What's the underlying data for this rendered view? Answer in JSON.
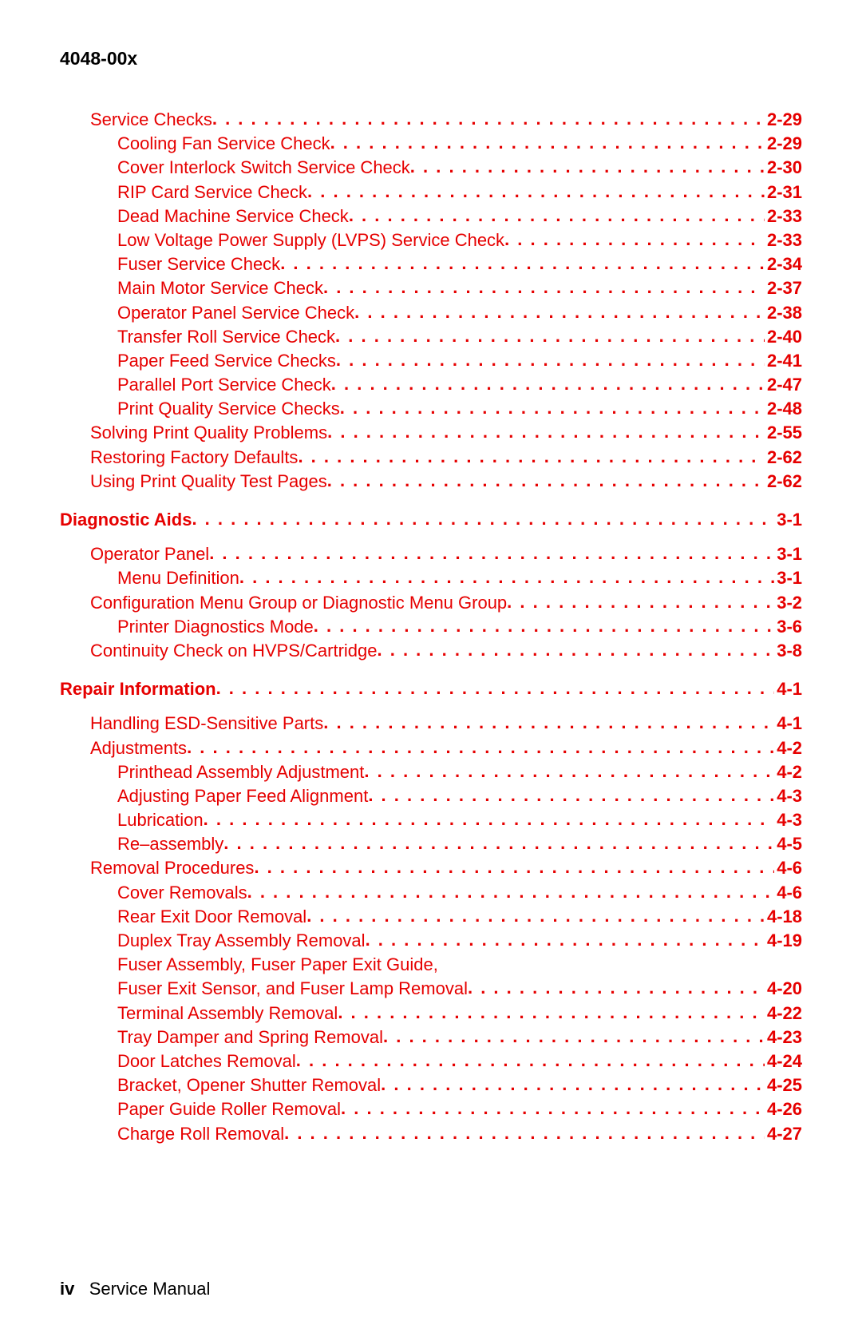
{
  "colors": {
    "link": "#e60000",
    "text": "#000000",
    "background": "#ffffff"
  },
  "fonts": {
    "family": "Arial, Helvetica, sans-serif",
    "body_size_pt": 16,
    "header_weight": "bold"
  },
  "header": {
    "model": "4048-00x"
  },
  "footer": {
    "page_roman": "iv",
    "doc_title": "Service Manual"
  },
  "toc": [
    {
      "label": "Service Checks",
      "page": "2-29",
      "indent": 1,
      "bold": false,
      "top_gap": false
    },
    {
      "label": "Cooling Fan Service Check",
      "page": "2-29",
      "indent": 2,
      "bold": false
    },
    {
      "label": "Cover Interlock Switch Service Check",
      "page": "2-30",
      "indent": 2,
      "bold": false
    },
    {
      "label": "RIP Card Service Check",
      "page": "2-31",
      "indent": 2,
      "bold": false
    },
    {
      "label": "Dead Machine Service Check",
      "page": "2-33",
      "indent": 2,
      "bold": false
    },
    {
      "label": "Low Voltage Power Supply (LVPS) Service Check",
      "page": "2-33",
      "indent": 2,
      "bold": false
    },
    {
      "label": "Fuser Service Check",
      "page": "2-34",
      "indent": 2,
      "bold": false
    },
    {
      "label": "Main Motor Service Check",
      "page": "2-37",
      "indent": 2,
      "bold": false
    },
    {
      "label": "Operator Panel Service Check",
      "page": "2-38",
      "indent": 2,
      "bold": false
    },
    {
      "label": "Transfer Roll Service Check",
      "page": "2-40",
      "indent": 2,
      "bold": false
    },
    {
      "label": "Paper Feed Service Checks",
      "page": "2-41",
      "indent": 2,
      "bold": false
    },
    {
      "label": "Parallel Port Service Check",
      "page": "2-47",
      "indent": 2,
      "bold": false
    },
    {
      "label": "Print Quality Service Checks",
      "page": "2-48",
      "indent": 2,
      "bold": false
    },
    {
      "label": "Solving Print Quality Problems",
      "page": "2-55",
      "indent": 1,
      "bold": false
    },
    {
      "label": "Restoring Factory Defaults",
      "page": "2-62",
      "indent": 1,
      "bold": false
    },
    {
      "label": "Using Print Quality Test Pages",
      "page": "2-62",
      "indent": 1,
      "bold": false
    },
    {
      "label": "Diagnostic Aids",
      "page": "3-1",
      "indent": 0,
      "bold": true,
      "section": true
    },
    {
      "label": "Operator Panel",
      "page": "3-1",
      "indent": 1,
      "bold": false,
      "block_start": true
    },
    {
      "label": "Menu Definition",
      "page": "3-1",
      "indent": 2,
      "bold": false
    },
    {
      "label": "Configuration Menu Group or Diagnostic Menu Group",
      "page": "3-2",
      "indent": 1,
      "bold": false
    },
    {
      "label": "Printer Diagnostics Mode",
      "page": "3-6",
      "indent": 2,
      "bold": false
    },
    {
      "label": "Continuity Check on HVPS/Cartridge",
      "page": "3-8",
      "indent": 1,
      "bold": false
    },
    {
      "label": "Repair Information",
      "page": "4-1",
      "indent": 0,
      "bold": true,
      "section": true
    },
    {
      "label": "Handling ESD-Sensitive Parts",
      "page": "4-1",
      "indent": 1,
      "bold": false,
      "block_start": true
    },
    {
      "label": "Adjustments",
      "page": "4-2",
      "indent": 1,
      "bold": false
    },
    {
      "label": "Printhead Assembly Adjustment",
      "page": "4-2",
      "indent": 2,
      "bold": false
    },
    {
      "label": "Adjusting Paper Feed Alignment",
      "page": "4-3",
      "indent": 2,
      "bold": false
    },
    {
      "label": "Lubrication",
      "page": "4-3",
      "indent": 2,
      "bold": false
    },
    {
      "label": "Re–assembly",
      "page": "4-5",
      "indent": 2,
      "bold": false
    },
    {
      "label": "Removal Procedures",
      "page": "4-6",
      "indent": 1,
      "bold": false
    },
    {
      "label": "Cover Removals",
      "page": "4-6",
      "indent": 2,
      "bold": false
    },
    {
      "label": "Rear Exit Door Removal",
      "page": "4-18",
      "indent": 2,
      "bold": false
    },
    {
      "label": "Duplex Tray Assembly Removal",
      "page": "4-19",
      "indent": 2,
      "bold": false
    },
    {
      "label": "Fuser Assembly, Fuser Paper Exit Guide,",
      "page": "",
      "indent": 2,
      "bold": false,
      "no_page": true
    },
    {
      "label": "Fuser Exit Sensor, and Fuser Lamp Removal",
      "page": "4-20",
      "indent": 2,
      "bold": false
    },
    {
      "label": "Terminal Assembly Removal",
      "page": "4-22",
      "indent": 2,
      "bold": false
    },
    {
      "label": "Tray Damper and Spring Removal",
      "page": "4-23",
      "indent": 2,
      "bold": false
    },
    {
      "label": "Door Latches Removal",
      "page": "4-24",
      "indent": 2,
      "bold": false
    },
    {
      "label": "Bracket, Opener Shutter Removal",
      "page": "4-25",
      "indent": 2,
      "bold": false
    },
    {
      "label": "Paper Guide Roller Removal",
      "page": "4-26",
      "indent": 2,
      "bold": false
    },
    {
      "label": "Charge Roll Removal",
      "page": "4-27",
      "indent": 2,
      "bold": false
    }
  ]
}
